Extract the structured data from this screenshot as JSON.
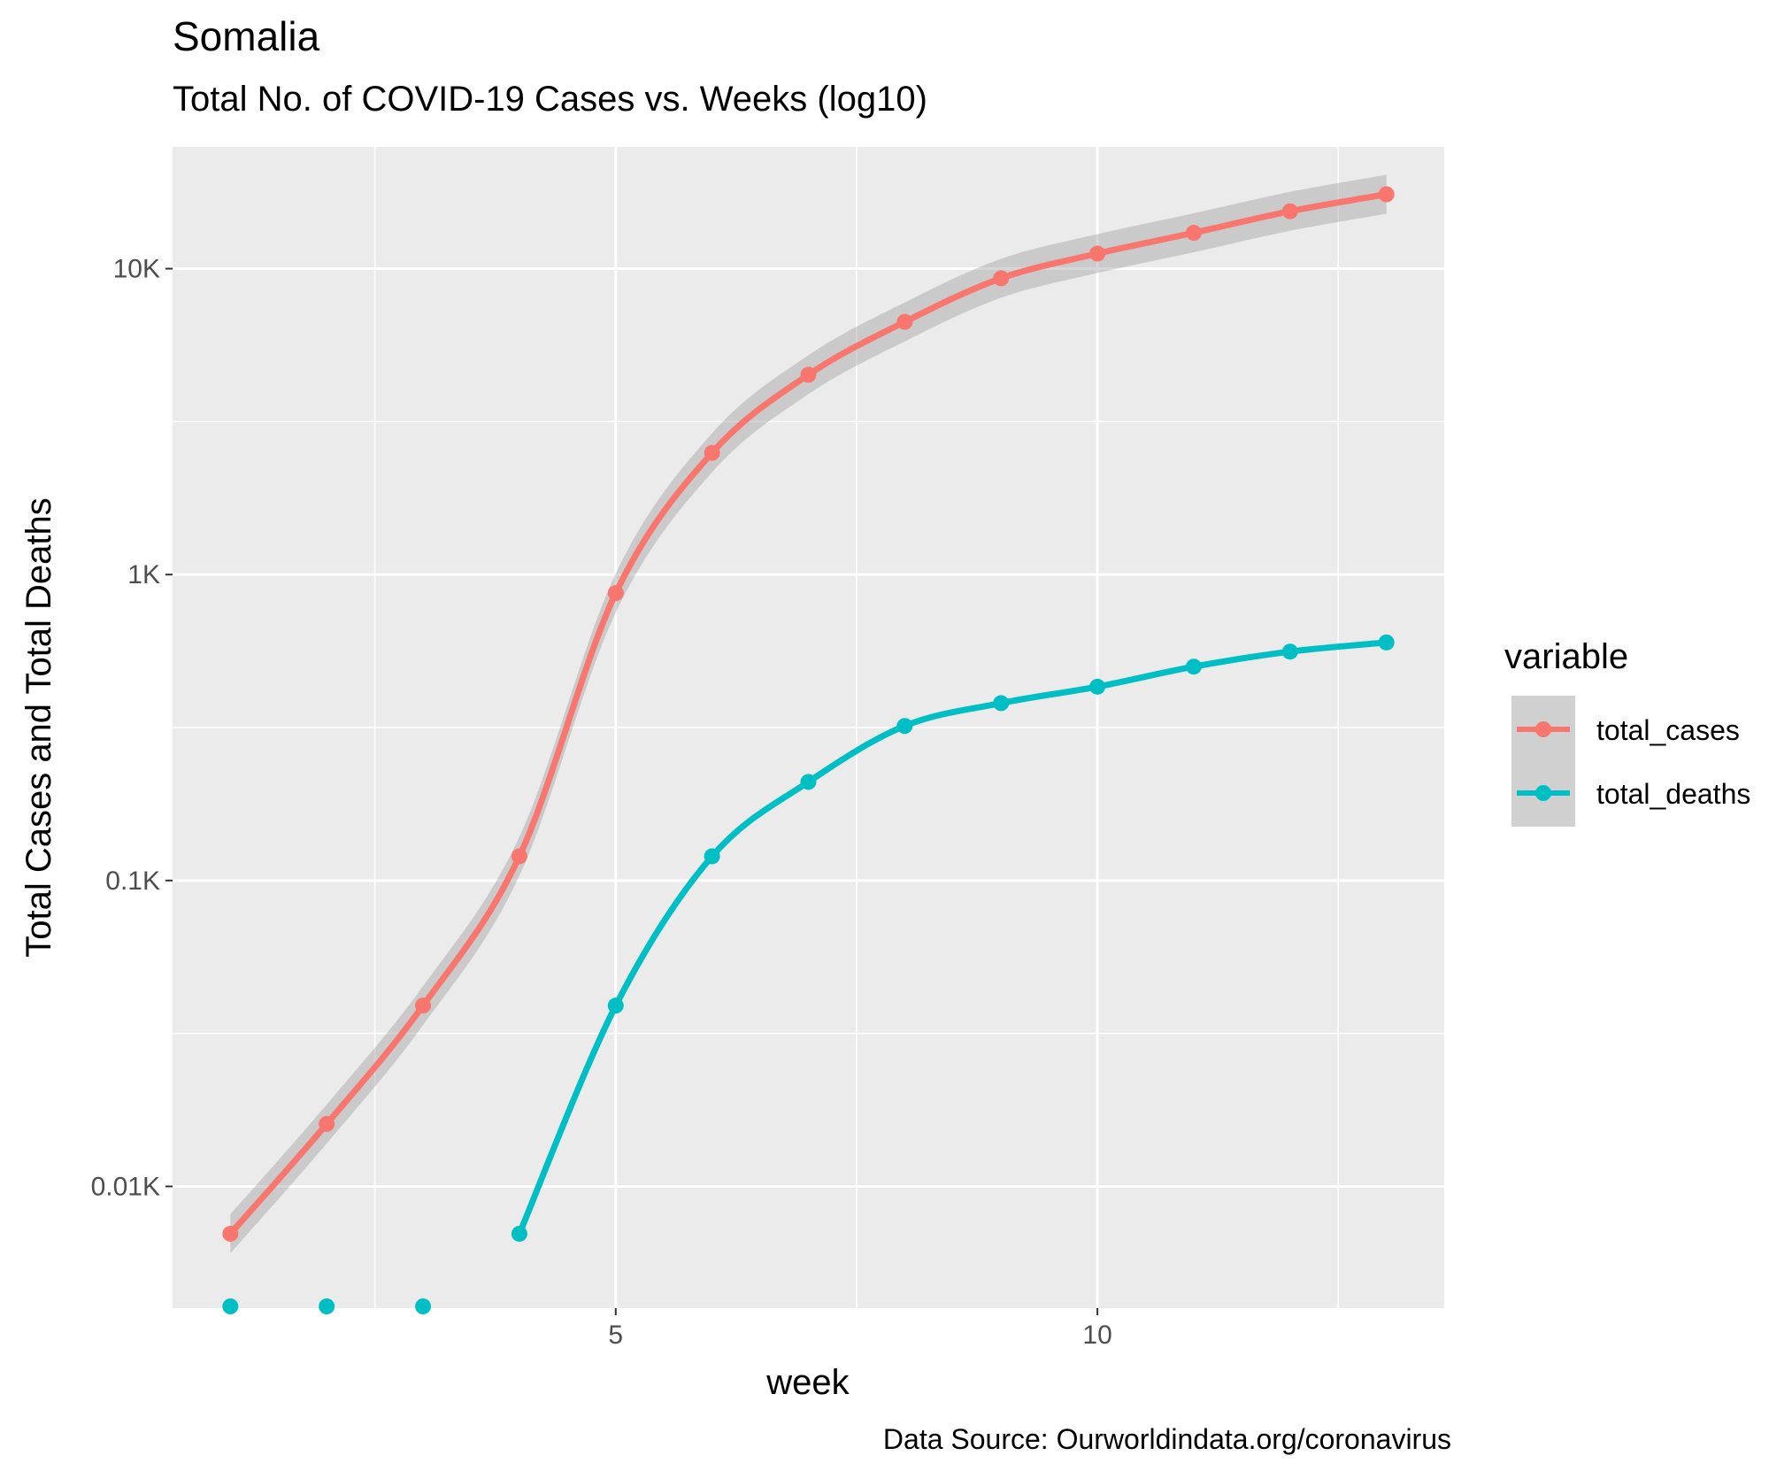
{
  "header": {
    "title": "Somalia",
    "subtitle": "Total No. of COVID-19 Cases vs. Weeks (log10)"
  },
  "caption": "Data Source: Ourworldindata.org/coronavirus",
  "chart_data": {
    "type": "line",
    "xlabel": "week",
    "ylabel": "Total Cases and Total Deaths",
    "y_scale": "log10",
    "xlim": [
      0.4,
      13.6
    ],
    "ylim": [
      4,
      25000
    ],
    "x_ticks": [
      5,
      10
    ],
    "x_tick_labels": [
      "5",
      "10"
    ],
    "y_ticks": [
      10,
      100,
      1000,
      10000
    ],
    "y_tick_labels": [
      "0.01K",
      "0.1K",
      "1K",
      "10K"
    ],
    "grid": true,
    "legend": {
      "title": "variable",
      "position": "right"
    },
    "series": [
      {
        "name": "total_cases",
        "color": "#F8766D",
        "confidence_band": true,
        "x": [
          1,
          2,
          3,
          4,
          5,
          6,
          7,
          8,
          9,
          10,
          11,
          12,
          13
        ],
        "y": [
          7,
          16,
          39,
          120,
          870,
          2500,
          4500,
          6700,
          9300,
          11200,
          13100,
          15400,
          17500
        ]
      },
      {
        "name": "total_deaths",
        "color": "#00BFC4",
        "confidence_band": false,
        "x": [
          1,
          2,
          3,
          4,
          5,
          6,
          7,
          8,
          9,
          10,
          11,
          12,
          13
        ],
        "y": [
          4,
          4,
          4,
          7,
          39,
          120,
          210,
          320,
          380,
          430,
          500,
          560,
          600
        ]
      }
    ]
  }
}
